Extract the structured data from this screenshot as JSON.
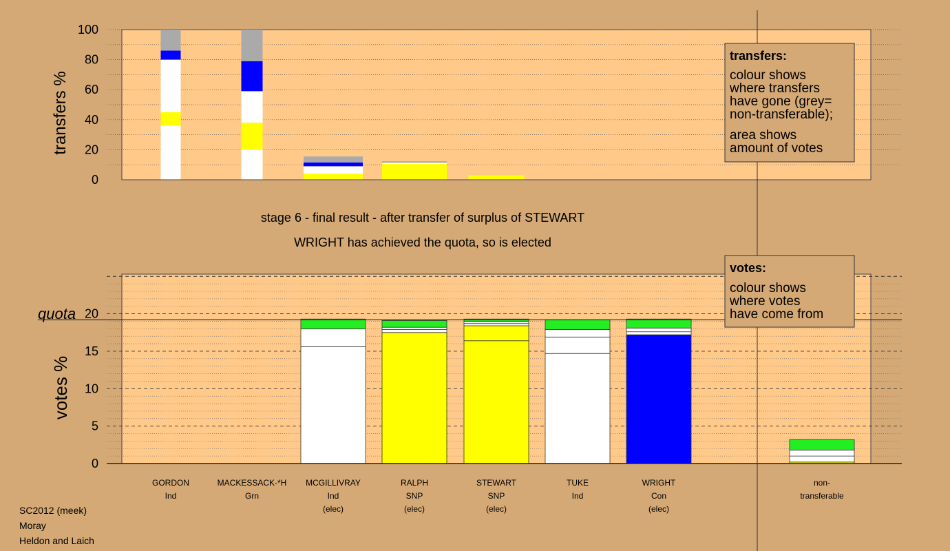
{
  "chart_data": [
    {
      "type": "bar",
      "stacked": true,
      "panel": "transfers",
      "ylabel": "transfers %",
      "ylim": [
        0,
        100
      ],
      "yticks": [
        0,
        20,
        40,
        60,
        80,
        100
      ],
      "grid": "dotted",
      "bars": [
        {
          "name": "GORDON",
          "segments": [
            {
              "color": "#ffffff",
              "value": 36
            },
            {
              "color": "#ffff00",
              "value": 9
            },
            {
              "color": "#ffffff",
              "value": 35
            },
            {
              "color": "#0000ff",
              "value": 6
            },
            {
              "color": "#aaaaaa",
              "value": 14
            }
          ]
        },
        {
          "name": "MACKESSACK-*H",
          "segments": [
            {
              "color": "#ffffff",
              "value": 20
            },
            {
              "color": "#ffff00",
              "value": 18
            },
            {
              "color": "#ffffff",
              "value": 21
            },
            {
              "color": "#0000ff",
              "value": 20
            },
            {
              "color": "#aaaaaa",
              "value": 21
            }
          ]
        },
        {
          "name": "MCGILLIVRAY",
          "segments": [
            {
              "color": "#ffff00",
              "value": 4
            },
            {
              "color": "#ffffff",
              "value": 5
            },
            {
              "color": "#0000ff",
              "value": 2.5
            },
            {
              "color": "#aaaaaa",
              "value": 4
            }
          ]
        },
        {
          "name": "RALPH",
          "segments": [
            {
              "color": "#ffff00",
              "value": 10.5
            },
            {
              "color": "#ffffff",
              "value": 0.8
            },
            {
              "color": "#aaaaaa",
              "value": 1
            }
          ]
        },
        {
          "name": "STEWART",
          "segments": [
            {
              "color": "#ffff00",
              "value": 3
            }
          ]
        }
      ],
      "legend": {
        "title": "transfers:",
        "lines1": [
          "colour shows",
          "where transfers",
          "have gone (grey=",
          "non-transferable);"
        ],
        "lines2": [
          "area shows",
          "amount of votes"
        ]
      }
    },
    {
      "type": "bar",
      "stacked": true,
      "panel": "votes",
      "ylabel": "votes %",
      "ylim": [
        0,
        25
      ],
      "yticks": [
        0,
        5,
        10,
        15,
        20
      ],
      "quota": 19.2,
      "quota_label": "quota",
      "grid": "dotted",
      "bars": [
        {
          "name": "MCGILLIVRAY",
          "segments": [
            {
              "color": "#ffffff",
              "value": 15.6
            },
            {
              "color": "#ffffff",
              "value": 2.4
            },
            {
              "color": "#22ee22",
              "value": 1.3
            }
          ]
        },
        {
          "name": "RALPH",
          "segments": [
            {
              "color": "#ffff00",
              "value": 17.5
            },
            {
              "color": "#ffffff",
              "value": 0.4
            },
            {
              "color": "#ffffff",
              "value": 0.3
            },
            {
              "color": "#22ee22",
              "value": 0.9
            }
          ]
        },
        {
          "name": "STEWART",
          "segments": [
            {
              "color": "#ffff00",
              "value": 16.4
            },
            {
              "color": "#ffff00",
              "value": 2.0
            },
            {
              "color": "#ffffff",
              "value": 0.3
            },
            {
              "color": "#ffffff",
              "value": 0.3
            },
            {
              "color": "#22ee22",
              "value": 0.3
            }
          ]
        },
        {
          "name": "TUKE",
          "segments": [
            {
              "color": "#ffffff",
              "value": 14.7
            },
            {
              "color": "#ffffff",
              "value": 2.2
            },
            {
              "color": "#ffffff",
              "value": 1.0
            },
            {
              "color": "#22ee22",
              "value": 1.3
            }
          ]
        },
        {
          "name": "WRIGHT",
          "segments": [
            {
              "color": "#0000ff",
              "value": 17.2
            },
            {
              "color": "#ffffff",
              "value": 0.4
            },
            {
              "color": "#ffffff",
              "value": 0.5
            },
            {
              "color": "#22ee22",
              "value": 1.2
            }
          ]
        },
        {
          "name": "non-transferable",
          "segments": [
            {
              "color": "#ffff00",
              "value": 0.2
            },
            {
              "color": "#ffffff",
              "value": 0.8
            },
            {
              "color": "#ffffff",
              "value": 0.8
            },
            {
              "color": "#22ee22",
              "value": 1.4
            }
          ]
        }
      ],
      "legend": {
        "title": "votes:",
        "lines1": [
          "colour shows",
          "where votes",
          "have come from"
        ]
      }
    }
  ],
  "stage_title": "stage 6 - final result - after transfer of surplus of STEWART",
  "stage_subtitle": "WRIGHT has achieved the quota, so is elected",
  "candidates": [
    {
      "name": "GORDON",
      "party": "Ind",
      "status": ""
    },
    {
      "name": "MACKESSACK-*H",
      "party": "Grn",
      "status": ""
    },
    {
      "name": "MCGILLIVRAY",
      "party": "Ind",
      "status": "(elec)"
    },
    {
      "name": "RALPH",
      "party": "SNP",
      "status": "(elec)"
    },
    {
      "name": "STEWART",
      "party": "SNP",
      "status": "(elec)"
    },
    {
      "name": "TUKE",
      "party": "Ind",
      "status": ""
    },
    {
      "name": "WRIGHT",
      "party": "Con",
      "status": "(elec)"
    },
    {
      "name": "non-",
      "party": "transferable",
      "status": ""
    }
  ],
  "footer": [
    "SC2012 (meek)",
    "Moray",
    "Heldon and Laich"
  ]
}
